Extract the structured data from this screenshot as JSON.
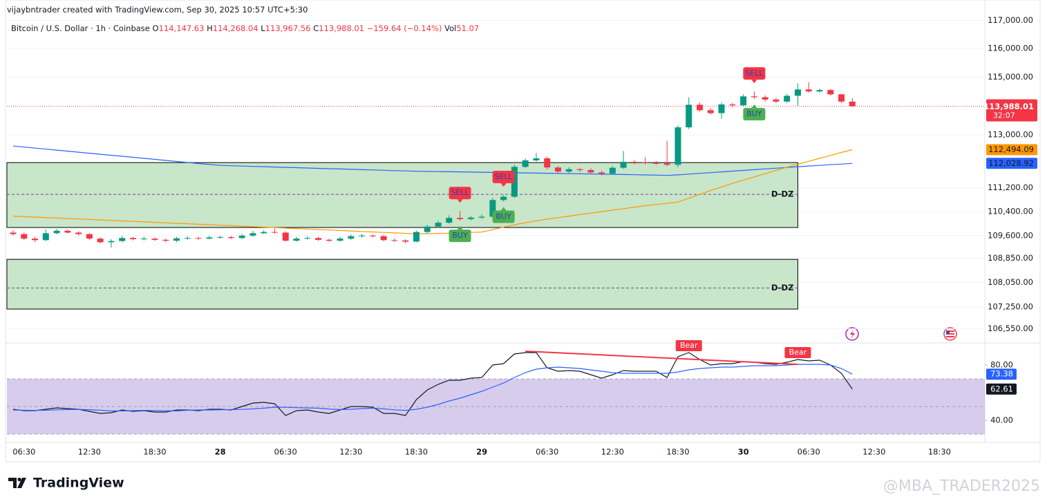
{
  "header": {
    "credit": "vijaybntrader created with TradingView.com, Sep 30, 2025 10:57 UTC+5:30",
    "symbol": "Bitcoin / U.S. Dollar · 1h · Coinbase",
    "ohlc": [
      {
        "key": "O",
        "value": "114,147.63"
      },
      {
        "key": "H",
        "value": "114,268.04"
      },
      {
        "key": "L",
        "value": "113,967.56"
      },
      {
        "key": "C",
        "value": "113,988.01"
      }
    ],
    "change": "−159.64 (−0.14%)",
    "vol_key": "Vol",
    "vol": "51.07"
  },
  "footer": {
    "brand": "TradingView",
    "watermark": "@MBA_TRADER2025"
  },
  "chart_data": [
    {
      "type": "candlestick",
      "log_scale": true,
      "ylim": [
        106200,
        117500
      ],
      "yticks": [
        {
          "value": 117000,
          "label": "117,000.00"
        },
        {
          "value": 116000,
          "label": "116,000.00"
        },
        {
          "value": 115000,
          "label": "115,000.00"
        },
        {
          "value": 113000,
          "label": "113,000.00"
        },
        {
          "value": 111200,
          "label": "111,200.00"
        },
        {
          "value": 110400,
          "label": "110,400.00"
        },
        {
          "value": 109600,
          "label": "109,600.00"
        },
        {
          "value": 108850,
          "label": "108,850.00"
        },
        {
          "value": 108050,
          "label": "108,050.00"
        },
        {
          "value": 107250,
          "label": "107,250.00"
        },
        {
          "value": 106550,
          "label": "106,550.00"
        }
      ],
      "grid": true,
      "colors": {
        "up": "#089981",
        "down": "#f23645"
      },
      "categories": [
        null,
        "06:30",
        null,
        null,
        null,
        null,
        null,
        "12:30",
        null,
        null,
        null,
        null,
        null,
        "18:30",
        null,
        null,
        null,
        null,
        null,
        "28",
        null,
        null,
        null,
        null,
        null,
        "06:30",
        null,
        null,
        null,
        null,
        null,
        "12:30",
        null,
        null,
        null,
        null,
        null,
        "18:30",
        null,
        null,
        null,
        null,
        null,
        "29",
        null,
        null,
        null,
        null,
        null,
        "06:30",
        null,
        null,
        null,
        null,
        null,
        "12:30",
        null,
        null,
        null,
        null,
        null,
        "18:30",
        null,
        null,
        null,
        null,
        null,
        "30",
        null,
        null,
        null,
        null,
        null,
        "06:30",
        null,
        null,
        null,
        null,
        null,
        "12:30",
        null,
        null,
        null,
        null,
        null,
        "18:30"
      ],
      "open": [
        109700,
        109650,
        109500,
        109450,
        109680,
        109760,
        109700,
        109650,
        109500,
        109380,
        109420,
        109520,
        109480,
        109500,
        109460,
        109430,
        109510,
        109520,
        109500,
        109540,
        109550,
        109520,
        109600,
        109680,
        109720,
        109700,
        109430,
        109500,
        109520,
        109460,
        109430,
        109500,
        109580,
        109600,
        109580,
        109450,
        109440,
        109400,
        109720,
        109900,
        110030,
        110190,
        110150,
        110200,
        110230,
        110790,
        110900,
        111910,
        112130,
        112200,
        111890,
        111750,
        111830,
        111800,
        111720,
        111680,
        111880,
        112080,
        112060,
        112040,
        112030,
        111980,
        113260,
        114040,
        113850,
        113750,
        114050,
        114020,
        114330,
        114300,
        114220,
        114150,
        114350,
        114570,
        114500,
        114550,
        114400,
        114147.63,
        null,
        null,
        null,
        null,
        null,
        null,
        null,
        null
      ],
      "high": [
        109780,
        109700,
        109560,
        109800,
        109820,
        109800,
        109740,
        109680,
        109540,
        109480,
        109580,
        109560,
        109560,
        109540,
        109500,
        109560,
        109580,
        109560,
        109600,
        109600,
        109590,
        109660,
        109760,
        109780,
        109840,
        109740,
        109560,
        109580,
        109560,
        109500,
        109560,
        109640,
        109660,
        109640,
        109620,
        109500,
        109480,
        109760,
        109960,
        110100,
        110280,
        110420,
        110260,
        110300,
        110860,
        110960,
        111980,
        112200,
        112380,
        112260,
        111940,
        111900,
        111880,
        111860,
        111780,
        111940,
        112450,
        112140,
        112240,
        112110,
        112800,
        113320,
        114300,
        114120,
        113920,
        114120,
        114100,
        114400,
        114500,
        114360,
        114280,
        114420,
        114780,
        114820,
        114600,
        114580,
        114420,
        114268.04,
        null,
        null,
        null,
        null,
        null,
        null,
        null,
        null
      ],
      "low": [
        109600,
        109450,
        109380,
        109420,
        109640,
        109660,
        109600,
        109460,
        109340,
        109200,
        109380,
        109440,
        109440,
        109420,
        109380,
        109380,
        109470,
        109460,
        109470,
        109500,
        109480,
        109480,
        109560,
        109640,
        109660,
        109400,
        109400,
        109470,
        109420,
        109390,
        109400,
        109460,
        109540,
        109540,
        109410,
        109380,
        109340,
        109380,
        109680,
        109860,
        110000,
        110100,
        110110,
        110160,
        110180,
        110740,
        110860,
        111860,
        112090,
        111820,
        111700,
        111700,
        111740,
        111660,
        111620,
        111640,
        111840,
        112000,
        111990,
        111980,
        111930,
        111900,
        113200,
        113800,
        113700,
        113560,
        113960,
        113980,
        114240,
        114150,
        114100,
        114110,
        114000,
        114460,
        114460,
        114360,
        114100,
        113967.56,
        null,
        null,
        null,
        null,
        null,
        null,
        null,
        null
      ],
      "close": [
        109650,
        109500,
        109450,
        109680,
        109760,
        109700,
        109650,
        109500,
        109380,
        109420,
        109520,
        109480,
        109500,
        109460,
        109430,
        109510,
        109520,
        109500,
        109540,
        109550,
        109520,
        109600,
        109680,
        109720,
        109700,
        109430,
        109500,
        109520,
        109460,
        109430,
        109500,
        109580,
        109600,
        109580,
        109450,
        109440,
        109400,
        109720,
        109900,
        110030,
        110190,
        110150,
        110200,
        110230,
        110790,
        110900,
        111910,
        112130,
        112200,
        111890,
        111750,
        111830,
        111800,
        111720,
        111680,
        111880,
        112080,
        112060,
        112040,
        112030,
        111980,
        113260,
        114040,
        113850,
        113750,
        114050,
        114020,
        114330,
        114300,
        114220,
        114150,
        114350,
        114570,
        114500,
        114550,
        114400,
        114150,
        113988.01,
        null,
        null,
        null,
        null,
        null,
        null,
        null,
        null
      ],
      "last_label": "113,988.01",
      "countdown": "32:07",
      "overlays": [
        {
          "color": "#2962ff",
          "last_label": "112,028.92",
          "values": [
            112620,
            112585,
            112550,
            112515,
            112480,
            112445,
            112410,
            112375,
            112340,
            112305,
            112270,
            112235,
            112200,
            112165,
            112130,
            112095,
            112060,
            112025,
            111990,
            111960,
            111948,
            111937,
            111926,
            111915,
            111904,
            111893,
            111882,
            111871,
            111860,
            111849,
            111838,
            111827,
            111816,
            111805,
            111794,
            111783,
            111772,
            111760,
            111755,
            111750,
            111745,
            111740,
            111734,
            111728,
            111722,
            111716,
            111710,
            111704,
            111698,
            111692,
            111686,
            111680,
            111674,
            111668,
            111662,
            111656,
            111650,
            111644,
            111638,
            111630,
            111620,
            111640,
            111665,
            111690,
            111715,
            111740,
            111765,
            111790,
            111815,
            111840,
            111865,
            111890,
            111915,
            111940,
            111960,
            111985,
            112005,
            112028.92,
            null,
            null,
            null,
            null,
            null,
            null,
            null,
            null
          ]
        },
        {
          "color": "#ff9800",
          "last_label": "112,494.09",
          "values": [
            110250,
            110234,
            110218,
            110202,
            110186,
            110170,
            110154,
            110138,
            110122,
            110106,
            110090,
            110074,
            110058,
            110042,
            110026,
            110010,
            109994,
            109978,
            109962,
            109946,
            109930,
            109914,
            109898,
            109882,
            109866,
            109850,
            109834,
            109818,
            109802,
            109786,
            109770,
            109754,
            109738,
            109722,
            109706,
            109690,
            109675,
            109660,
            109665,
            109672,
            109680,
            109690,
            109705,
            109720,
            109800,
            109880,
            109960,
            110030,
            110090,
            110150,
            110200,
            110250,
            110300,
            110350,
            110400,
            110450,
            110500,
            110550,
            110600,
            110640,
            110680,
            110720,
            110850,
            110980,
            111110,
            111230,
            111350,
            111460,
            111570,
            111680,
            111790,
            111900,
            112000,
            112100,
            112200,
            112300,
            112400,
            112494.09,
            null,
            null,
            null,
            null,
            null,
            null,
            null,
            null
          ]
        }
      ],
      "zones": [
        {
          "label": "D-DZ",
          "top": 112055,
          "bottom": 109870,
          "mid": 110980,
          "color": "#c8e6c9"
        },
        {
          "label": "D-DZ",
          "top": 108812,
          "bottom": 107184,
          "mid": 107870,
          "color": "#c8e6c9"
        }
      ],
      "signals": [
        {
          "label": "SELL",
          "at": 41,
          "position": "above",
          "color": "#f23645"
        },
        {
          "label": "BUY",
          "at": 41,
          "position": "below",
          "color": "#4caf50"
        },
        {
          "label": "SELL",
          "at": 45,
          "position": "above",
          "color": "#f23645"
        },
        {
          "label": "BUY",
          "at": 45,
          "position": "below",
          "color": "#4caf50"
        },
        {
          "label": "SELL",
          "at": 68,
          "position": "above",
          "color": "#f23645"
        },
        {
          "label": "BUY",
          "at": 68,
          "position": "below",
          "color": "#4caf50"
        }
      ]
    },
    {
      "type": "line",
      "ylim": [
        24,
        96
      ],
      "yticks": [
        {
          "value": 80,
          "label": "80.00"
        },
        {
          "value": 40,
          "label": "40.00"
        }
      ],
      "band": {
        "upper": 70,
        "middle": 50,
        "lower": 30,
        "color": "#7e57c2"
      },
      "series": [
        {
          "color": "#131722",
          "values": [
            48,
            47,
            47,
            48,
            49,
            48.5,
            48,
            46.5,
            45,
            45.5,
            47.5,
            46.5,
            47,
            46,
            46,
            47.5,
            47.5,
            47,
            48,
            48,
            47.5,
            50,
            52.5,
            53,
            52,
            43.5,
            47,
            47.5,
            46,
            45,
            47.5,
            50,
            50,
            49.5,
            45,
            45,
            43.5,
            55,
            62,
            66,
            69,
            69,
            70.5,
            71,
            80,
            81,
            88,
            89,
            89,
            78,
            75.5,
            76,
            75.5,
            73,
            70.5,
            73,
            76,
            75.5,
            75.5,
            75.5,
            71,
            86,
            89,
            84,
            80,
            81,
            81,
            82.5,
            82,
            81,
            80.5,
            82,
            84,
            83,
            83.5,
            80,
            74,
            62.61,
            null,
            null,
            null,
            null,
            null,
            null,
            null,
            null
          ]
        },
        {
          "color": "#2962ff",
          "values": [
            47.5,
            47.3,
            47.2,
            47.3,
            47.6,
            47.8,
            47.9,
            47.7,
            47.3,
            46.8,
            46.8,
            47,
            47.2,
            47.1,
            46.9,
            46.8,
            47.3,
            47.5,
            47.5,
            47.6,
            47.8,
            47.9,
            48.3,
            48.8,
            49.5,
            49.4,
            49.2,
            49,
            48.8,
            48.2,
            47.8,
            48,
            48.5,
            48.8,
            48.3,
            47.6,
            47.2,
            48,
            49.5,
            51.5,
            54,
            56,
            58.5,
            61,
            64,
            67,
            71,
            74.5,
            77,
            78,
            78.5,
            78,
            77.5,
            76.5,
            75.5,
            74.5,
            74,
            74,
            74,
            74,
            74,
            75,
            76.5,
            77.5,
            78,
            78.5,
            78.5,
            79,
            79.5,
            79.5,
            79.5,
            80,
            80.5,
            80.5,
            80.5,
            80,
            77.5,
            73.38,
            null,
            null,
            null,
            null,
            null,
            null,
            null,
            null
          ]
        }
      ],
      "divergence": {
        "color": "#f23645",
        "start": 47,
        "end": 72,
        "values": [
          90,
          80.5
        ],
        "labels": [
          {
            "text": "Bear",
            "at": 62
          },
          {
            "text": "Bear",
            "at": 72
          }
        ]
      }
    }
  ]
}
